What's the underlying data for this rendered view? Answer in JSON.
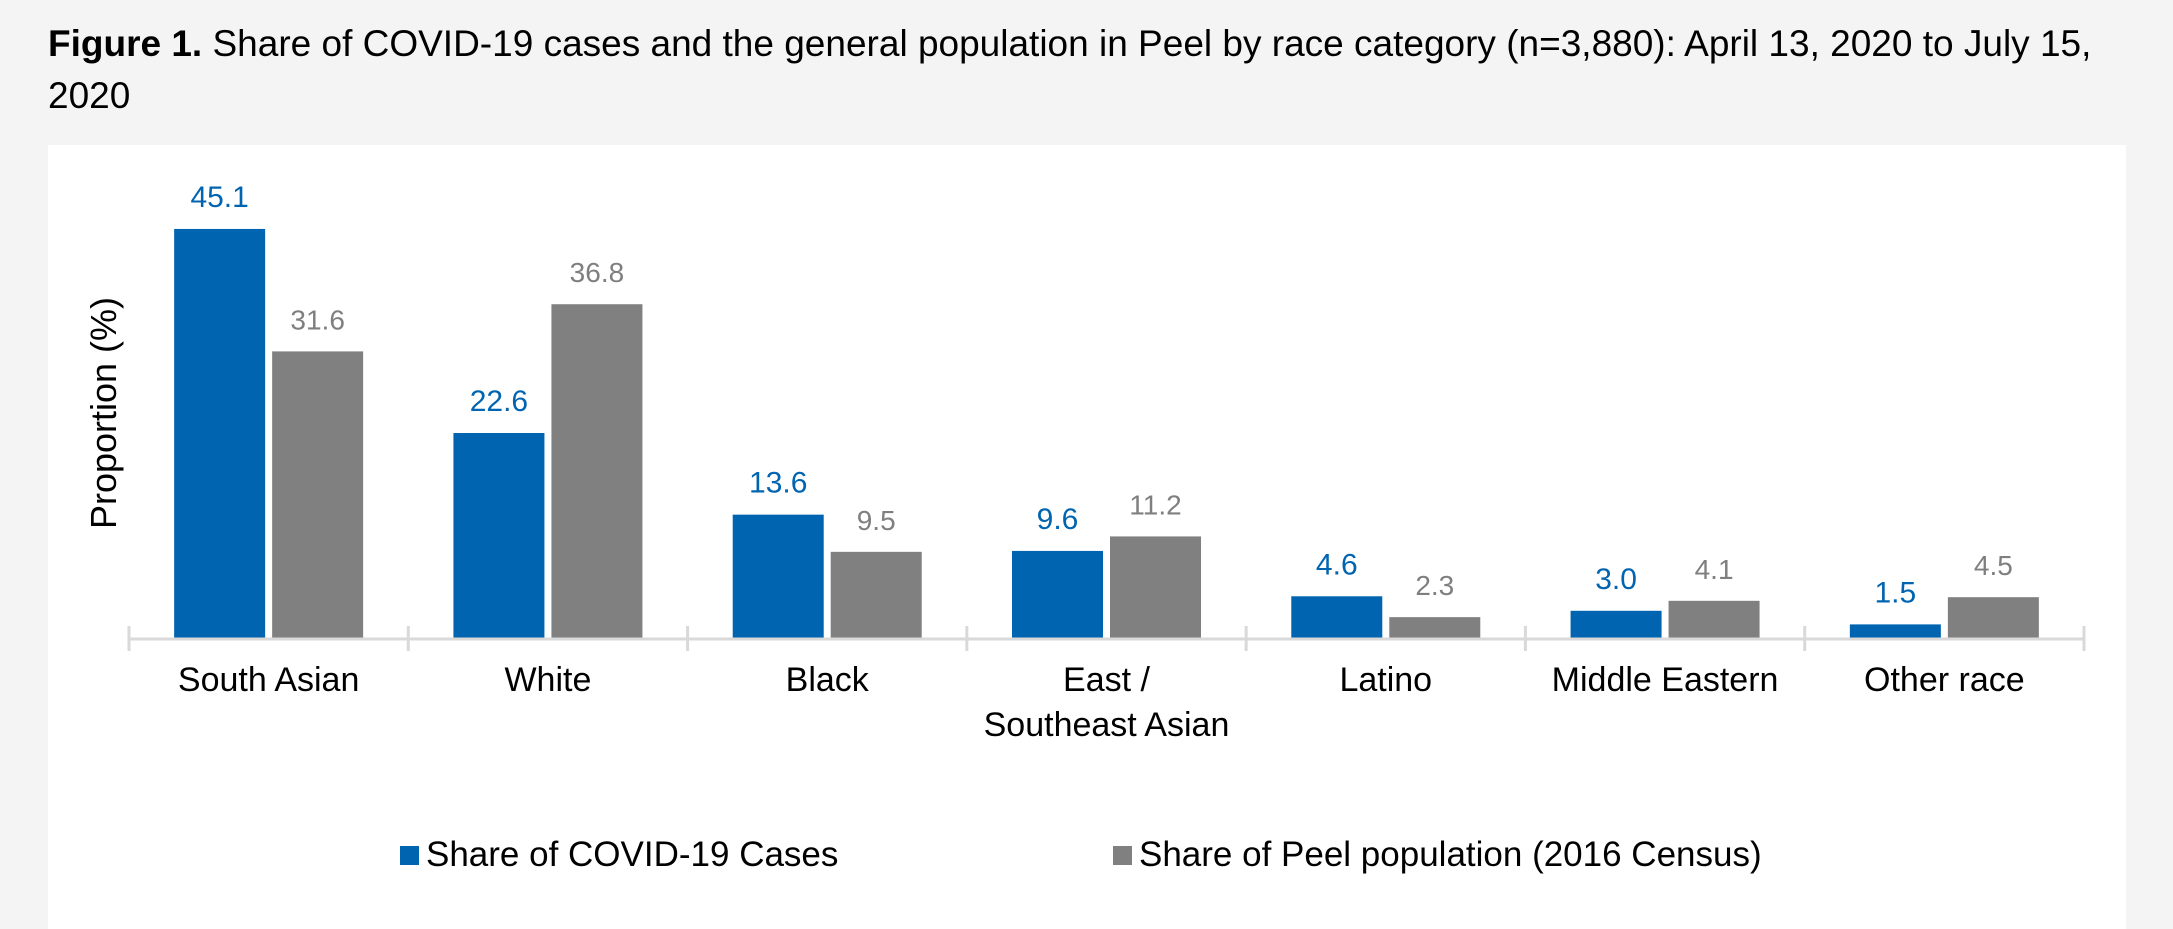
{
  "figure": {
    "label": "Figure 1.",
    "caption": " Share of COVID-19 cases and the general population in Peel by race category (n=3,880): April 13, 2020 to July 15, 2020"
  },
  "chart_data": {
    "type": "bar",
    "title": "Share of COVID-19 cases and the general population in Peel by race category (n=3,880): April 13, 2020 to July 15, 2020",
    "xlabel": "",
    "ylabel": "Proportion (%)",
    "ylim": [
      0,
      50
    ],
    "grid": false,
    "legend_position": "bottom",
    "categories": [
      [
        "South Asian"
      ],
      [
        "White"
      ],
      [
        "Black"
      ],
      [
        "East /",
        "Southeast Asian"
      ],
      [
        "Latino"
      ],
      [
        "Middle Eastern"
      ],
      [
        "Other race"
      ]
    ],
    "series": [
      {
        "name": "Share of COVID-19 Cases",
        "color": "#0064b0",
        "label_color": "#0064b0",
        "values": [
          45.1,
          22.6,
          13.6,
          9.6,
          4.6,
          3.0,
          1.5
        ],
        "labels": [
          "45.1",
          "22.6",
          "13.6",
          "9.6",
          "4.6",
          "3.0",
          "1.5"
        ]
      },
      {
        "name": "Share of Peel population (2016 Census)",
        "color": "#808080",
        "label_color": "#7f7f7f",
        "values": [
          31.6,
          36.8,
          9.5,
          11.2,
          2.3,
          4.1,
          4.5
        ],
        "labels": [
          "31.6",
          "36.8",
          "9.5",
          "11.2",
          "2.3",
          "4.1",
          "4.5"
        ]
      }
    ]
  }
}
